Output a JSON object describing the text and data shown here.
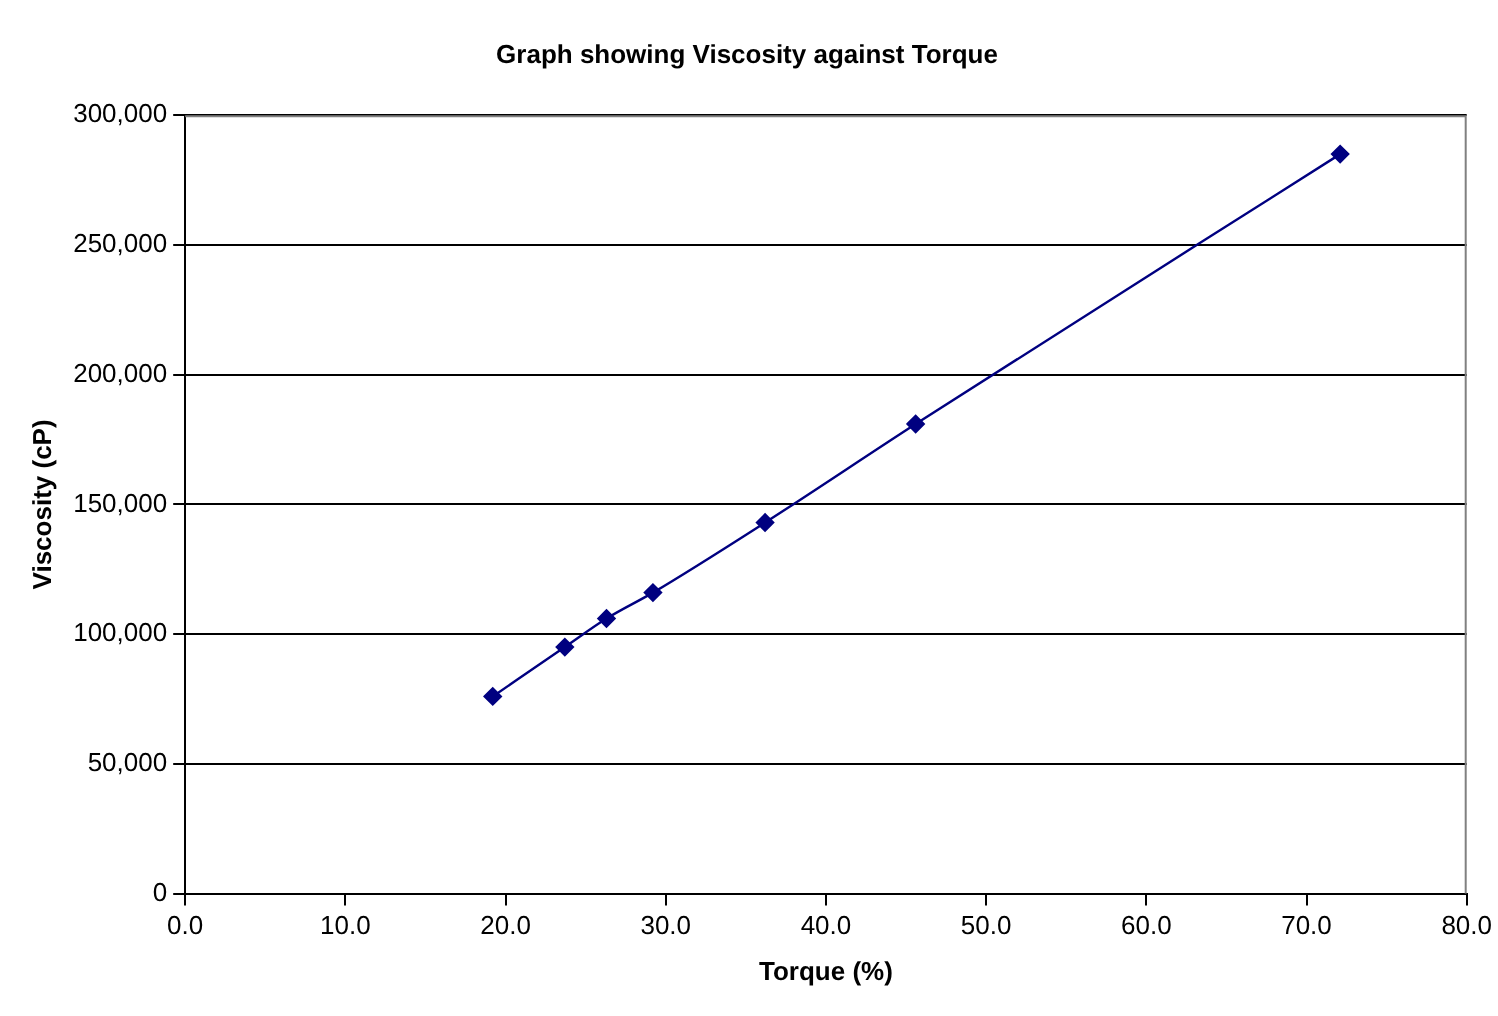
{
  "chart_data": {
    "type": "line",
    "title": "Graph showing Viscosity against Torque",
    "xlabel": "Torque (%)",
    "ylabel": "Viscosity (cP)",
    "x": [
      19.2,
      23.7,
      26.3,
      29.2,
      36.2,
      45.6,
      72.1
    ],
    "series": [
      {
        "color": "#000080",
        "values": [
          76000,
          95000,
          106000,
          116000,
          143000,
          181000,
          285000
        ]
      }
    ],
    "xlim": [
      0,
      80
    ],
    "xticks": [
      {
        "value": 0,
        "label": "0.0"
      },
      {
        "value": 10,
        "label": "10.0"
      },
      {
        "value": 20,
        "label": "20.0"
      },
      {
        "value": 30,
        "label": "30.0"
      },
      {
        "value": 40,
        "label": "40.0"
      },
      {
        "value": 50,
        "label": "50.0"
      },
      {
        "value": 60,
        "label": "60.0"
      },
      {
        "value": 70,
        "label": "70.0"
      },
      {
        "value": 80,
        "label": "80.0"
      }
    ],
    "ylim": [
      0,
      300000
    ],
    "yticks": [
      {
        "value": 0,
        "label": "0"
      },
      {
        "value": 50000,
        "label": "50,000"
      },
      {
        "value": 100000,
        "label": "100,000"
      },
      {
        "value": 150000,
        "label": "150,000"
      },
      {
        "value": 200000,
        "label": "200,000"
      },
      {
        "value": 250000,
        "label": "250,000"
      },
      {
        "value": 300000,
        "label": "300,000"
      }
    ],
    "grid": "y",
    "legend": false,
    "marker": "diamond",
    "line_style": "solid"
  }
}
